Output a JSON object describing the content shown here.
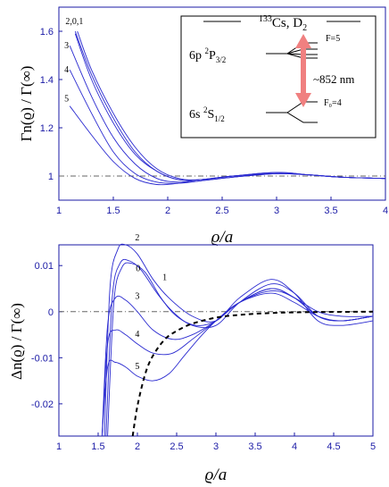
{
  "chart_data": [
    {
      "type": "line",
      "xlabel": "ϱ/a",
      "ylabel": "Γn(ϱ) / Γ(∞)",
      "xlim": [
        1,
        4
      ],
      "ylim": [
        0.9,
        1.7
      ],
      "xticks": [
        "1",
        "1.5",
        "2",
        "2.5",
        "3",
        "3.5",
        "4"
      ],
      "yticks": [
        "1",
        "1.2",
        "1.4",
        "1.6"
      ],
      "reference_line": {
        "y": 1,
        "style": "dash-dot"
      },
      "curve_labels": [
        "2,0,1",
        "3",
        "4",
        "5"
      ],
      "series": [
        {
          "name": "2",
          "x": [
            1.15,
            1.3,
            1.5,
            1.7,
            1.9,
            2.1,
            2.3,
            2.6,
            3.0,
            3.3,
            3.6,
            4.0
          ],
          "y": [
            1.59,
            1.4,
            1.22,
            1.09,
            1.02,
            0.985,
            0.985,
            1.0,
            1.015,
            1.005,
            0.995,
            0.99
          ]
        },
        {
          "name": "0",
          "x": [
            1.15,
            1.3,
            1.5,
            1.7,
            1.9,
            2.1,
            2.3,
            2.6,
            3.0,
            3.3,
            3.6,
            4.0
          ],
          "y": [
            1.6,
            1.42,
            1.24,
            1.1,
            1.02,
            0.985,
            0.985,
            1.0,
            1.015,
            1.005,
            0.995,
            0.99
          ]
        },
        {
          "name": "1",
          "x": [
            1.17,
            1.3,
            1.5,
            1.7,
            1.9,
            2.1,
            2.3,
            2.6,
            3.0,
            3.3,
            3.6,
            4.0
          ],
          "y": [
            1.6,
            1.44,
            1.26,
            1.12,
            1.03,
            0.99,
            0.985,
            1.0,
            1.01,
            1.005,
            0.995,
            0.99
          ]
        },
        {
          "name": "3",
          "x": [
            1.1,
            1.3,
            1.5,
            1.7,
            1.9,
            2.1,
            2.3,
            2.6,
            3.0,
            3.3,
            3.6,
            4.0
          ],
          "y": [
            1.54,
            1.33,
            1.16,
            1.05,
            0.99,
            0.975,
            0.985,
            1.0,
            1.01,
            1.005,
            0.995,
            0.99
          ]
        },
        {
          "name": "4",
          "x": [
            1.1,
            1.3,
            1.5,
            1.7,
            1.9,
            2.1,
            2.3,
            2.6,
            3.0,
            3.3,
            3.6,
            4.0
          ],
          "y": [
            1.44,
            1.26,
            1.1,
            1.01,
            0.975,
            0.97,
            0.98,
            0.995,
            1.01,
            1.005,
            0.995,
            0.99
          ]
        },
        {
          "name": "5",
          "x": [
            1.1,
            1.3,
            1.5,
            1.7,
            1.9,
            2.1,
            2.3,
            2.6,
            3.0,
            3.3,
            3.6,
            4.0
          ],
          "y": [
            1.29,
            1.17,
            1.06,
            0.99,
            0.965,
            0.97,
            0.98,
            0.995,
            1.01,
            1.005,
            0.995,
            0.99
          ]
        }
      ]
    },
    {
      "type": "line",
      "xlabel": "ϱ/a",
      "ylabel": "Δn(ϱ) / Γ(∞)",
      "xlim": [
        1,
        5
      ],
      "ylim": [
        -0.027,
        0.0145
      ],
      "xticks": [
        "1",
        "1.5",
        "2",
        "2.5",
        "3",
        "3.5",
        "4",
        "4.5",
        "5"
      ],
      "yticks": [
        "-0.02",
        "-0.01",
        "0",
        "0.01"
      ],
      "reference_line": {
        "y": 0,
        "style": "dash-dot"
      },
      "curve_labels": [
        "2",
        "0",
        "1",
        "3",
        "4",
        "5"
      ],
      "series": [
        {
          "name": "2",
          "x": [
            1.58,
            1.65,
            1.75,
            1.85,
            2.0,
            2.2,
            2.4,
            2.7,
            3.0,
            3.3,
            3.7,
            4.0,
            4.3,
            4.6,
            5.0
          ],
          "y": [
            -0.027,
            0.005,
            0.0135,
            0.0145,
            0.0125,
            0.007,
            0.003,
            -0.001,
            -0.002,
            0.003,
            0.007,
            0.004,
            -0.002,
            -0.003,
            -0.002
          ]
        },
        {
          "name": "0",
          "x": [
            1.6,
            1.68,
            1.78,
            1.9,
            2.05,
            2.25,
            2.45,
            2.7,
            3.0,
            3.3,
            3.7,
            4.0,
            4.3,
            4.6,
            5.0
          ],
          "y": [
            -0.027,
            0.003,
            0.0105,
            0.011,
            0.009,
            0.004,
            0.0,
            -0.003,
            -0.003,
            0.002,
            0.006,
            0.004,
            -0.001,
            -0.002,
            -0.001
          ]
        },
        {
          "name": "1",
          "x": [
            1.62,
            1.7,
            1.8,
            1.92,
            2.1,
            2.3,
            2.5,
            2.75,
            3.0,
            3.3,
            3.7,
            4.0,
            4.3,
            4.6,
            5.0
          ],
          "y": [
            -0.027,
            0.002,
            0.0095,
            0.0105,
            0.0085,
            0.003,
            -0.001,
            -0.003,
            -0.002,
            0.002,
            0.005,
            0.003,
            0.0,
            -0.001,
            -0.001
          ]
        },
        {
          "name": "3",
          "x": [
            1.55,
            1.62,
            1.72,
            1.85,
            2.0,
            2.2,
            2.45,
            2.7,
            3.0,
            3.3,
            3.7,
            4.0,
            4.3,
            4.6,
            5.0
          ],
          "y": [
            -0.027,
            -0.003,
            0.003,
            0.0025,
            0.0,
            -0.004,
            -0.006,
            -0.005,
            -0.002,
            0.002,
            0.005,
            0.003,
            -0.001,
            -0.002,
            -0.001
          ]
        },
        {
          "name": "4",
          "x": [
            1.55,
            1.62,
            1.72,
            1.85,
            2.0,
            2.2,
            2.45,
            2.7,
            3.0,
            3.3,
            3.7,
            4.0,
            4.3,
            4.6,
            5.0
          ],
          "y": [
            -0.027,
            -0.007,
            -0.004,
            -0.005,
            -0.007,
            -0.009,
            -0.009,
            -0.006,
            -0.002,
            0.002,
            0.0045,
            0.003,
            -0.001,
            -0.002,
            -0.001
          ]
        },
        {
          "name": "5",
          "x": [
            1.55,
            1.62,
            1.72,
            1.85,
            2.0,
            2.2,
            2.4,
            2.6,
            2.8,
            3.0,
            3.3,
            3.7,
            4.0,
            4.3,
            4.6,
            5.0
          ],
          "y": [
            -0.027,
            -0.012,
            -0.011,
            -0.012,
            -0.014,
            -0.015,
            -0.0135,
            -0.0095,
            -0.0055,
            -0.002,
            0.002,
            0.004,
            0.002,
            -0.001,
            -0.002,
            -0.001
          ]
        },
        {
          "name": "dashed",
          "x": [
            1.94,
            2.0,
            2.1,
            2.2,
            2.35,
            2.5,
            2.7,
            3.0,
            3.3,
            3.7,
            4.2,
            5.0
          ],
          "y": [
            -0.027,
            -0.0205,
            -0.0135,
            -0.0095,
            -0.006,
            -0.0042,
            -0.0026,
            -0.0013,
            -0.0007,
            -0.0003,
            -0.0001,
            0.0
          ]
        }
      ]
    }
  ],
  "inset": {
    "title_mass": "133",
    "title_element": "Cs, D",
    "title_sub": "2",
    "upper_level": {
      "n": "6p ",
      "sup": "2",
      "term": "P",
      "sub": "3/2"
    },
    "lower_level": {
      "n": "6s ",
      "sup": "2",
      "term": "S",
      "sub": "1/2"
    },
    "upper_f": "F=5",
    "lower_f": "F₀=4",
    "wavelength": "~852 nm",
    "arrow_color": "#f08080"
  }
}
